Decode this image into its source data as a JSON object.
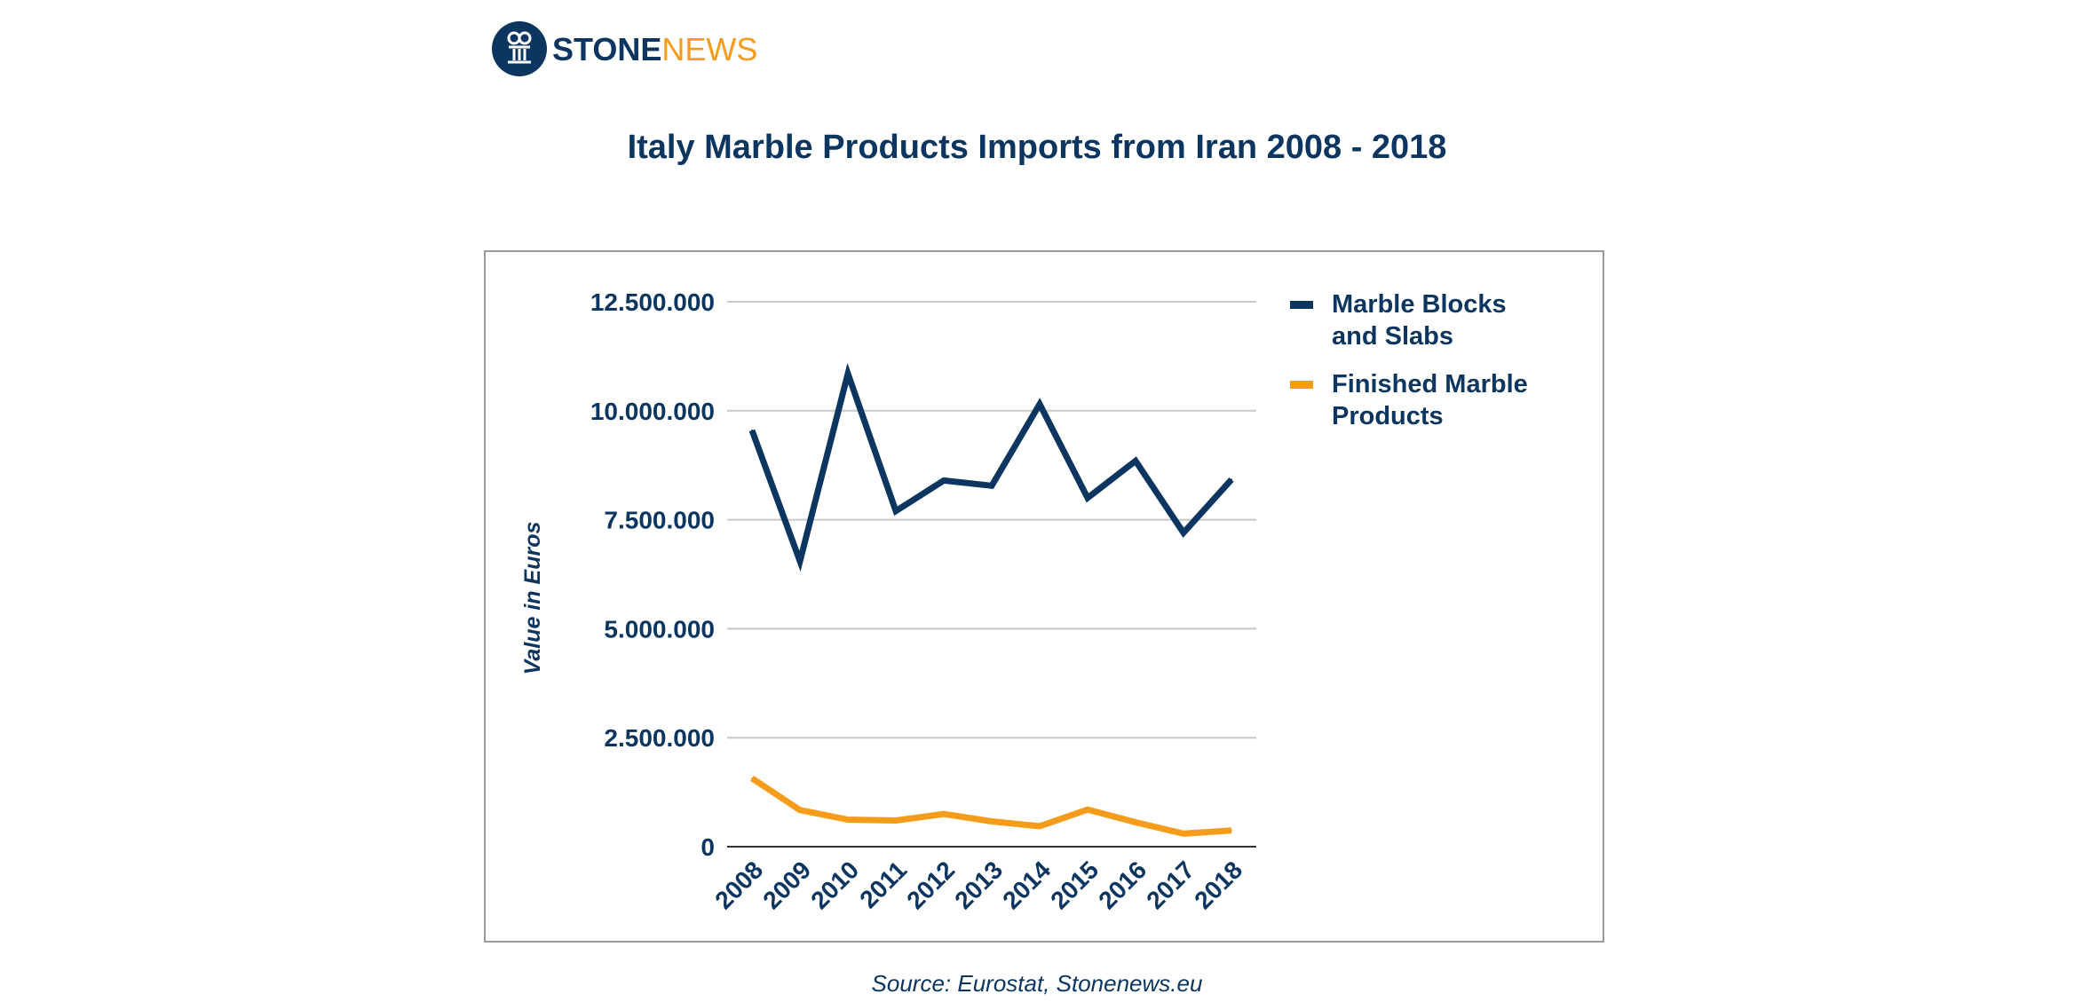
{
  "logo": {
    "part1": "STONE",
    "part2": "NEWS"
  },
  "source": "Source: Eurostat, Stonenews.eu",
  "colors": {
    "navy": "#0c3660",
    "orange": "#f59c1a",
    "grid": "#c8c8c8"
  },
  "chart_data": {
    "type": "line",
    "title": "Italy Marble Products Imports from Iran 2008 - 2018",
    "ylabel": "Value in Euros",
    "xlabel": "",
    "ylim": [
      0,
      12500000
    ],
    "yticks": [
      0,
      2500000,
      5000000,
      7500000,
      10000000,
      12500000
    ],
    "ytick_labels": [
      "0",
      "2.500.000",
      "5.000.000",
      "7.500.000",
      "10.000.000",
      "12.500.000"
    ],
    "x": [
      "2008",
      "2009",
      "2010",
      "2011",
      "2012",
      "2013",
      "2014",
      "2015",
      "2016",
      "2017",
      "2018"
    ],
    "grid": true,
    "legend": "right",
    "series": [
      {
        "name": "Marble Blocks and Slabs",
        "legend_lines": [
          "Marble Blocks",
          "and Slabs"
        ],
        "color": "#0c3660",
        "values": [
          9550000,
          6550000,
          10850000,
          7700000,
          8400000,
          8280000,
          10150000,
          8000000,
          8850000,
          7200000,
          8420000
        ]
      },
      {
        "name": "Finished Marble Products",
        "legend_lines": [
          "Finished Marble",
          "Products"
        ],
        "color": "#f59c1a",
        "values": [
          1570000,
          840000,
          620000,
          600000,
          750000,
          580000,
          470000,
          850000,
          560000,
          300000,
          370000
        ]
      }
    ]
  }
}
